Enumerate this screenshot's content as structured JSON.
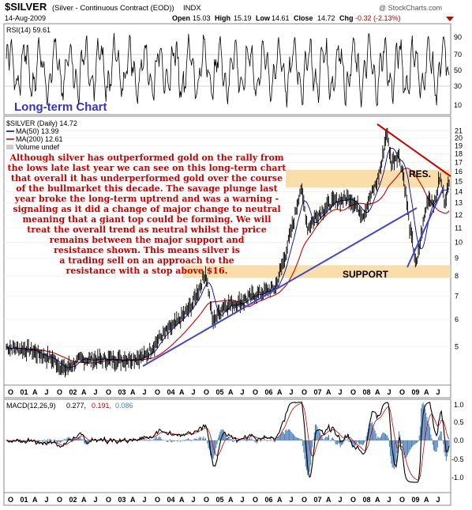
{
  "header": {
    "symbol": "$SILVER",
    "description": "(Silver - Continuous Contract (EOD))",
    "exchange": "INDX",
    "date": "14-Aug-2009",
    "open_label": "Open",
    "open": "15.03",
    "high_label": "High",
    "high": "15.19",
    "low_label": "Low",
    "low": "14.61",
    "close_label": "Close",
    "close": "14.72",
    "chg_label": "Chg",
    "chg": "-0.32 (-2.13%)",
    "watermark": "@ StockCharts.com"
  },
  "rsi_panel": {
    "label": "RSI(14) 59.61",
    "ticks": [
      "90",
      "70",
      "50",
      "30",
      "10"
    ]
  },
  "main_panel": {
    "overlay_title": "Long-term Chart",
    "legend": [
      {
        "text": "$SILVER (Daily) 14.72",
        "color": "#000000"
      },
      {
        "text": "MA(50) 13.99",
        "color": "#0000aa"
      },
      {
        "text": "MA(200) 12.61",
        "color": "#cc0000"
      },
      {
        "text": "Volume undef",
        "color": "#888888"
      }
    ],
    "commentary": [
      "Although silver has outperformed gold on the rally from",
      "the lows late last year we can see on this long-term chart",
      "that overall it has underperformed gold over the course",
      "of the bullmarket this decade. The savage plunge last",
      "year broke the long-term uptrend and was a warning -",
      "signaling as it did a change of major change to neutral",
      "meaning that a giant top could be forming. We will",
      "treat the overall trend as neutral whilst the price",
      "remains between the major support and",
      "resistance shown. This means silver is",
      "a trading sell on an approach to the",
      "resistance with a stop above $16."
    ],
    "resistance_label": "RES.",
    "support_label": "SUPPORT",
    "y_ticks": [
      "21",
      "20",
      "19",
      "18",
      "17",
      "16",
      "15",
      "14",
      "13",
      "12",
      "11",
      "10",
      "9",
      "8",
      "7",
      "6",
      "5"
    ]
  },
  "x_axis_labels": [
    "O",
    "01",
    "A",
    "J",
    "O",
    "02",
    "A",
    "J",
    "O",
    "03",
    "A",
    "J",
    "O",
    "04",
    "A",
    "J",
    "O",
    "05",
    "A",
    "J",
    "O",
    "06",
    "A",
    "J",
    "O",
    "07",
    "A",
    "J",
    "O",
    "08",
    "A",
    "J",
    "O",
    "09",
    "A",
    "J"
  ],
  "macd_panel": {
    "label_prefix": "MACD(12,26,9)",
    "macd_value": "0.277,",
    "signal_value": "0.191,",
    "hist_value": "0.086",
    "ticks": [
      "1.0",
      "0.5",
      "0.0",
      "-0.5",
      "-1.0"
    ]
  },
  "colors": {
    "price": "#000000",
    "ma50": "#0000aa",
    "ma200": "#cc0000",
    "band": "#f9d89b",
    "uptrend": "#4444cc",
    "downtrend": "#cc0000",
    "commentary": "#cc0000",
    "overlay_title": "#3333cc",
    "macd_hist": "#4a7fb8",
    "signal": "#cc0000",
    "chg_negative": "#cc0000"
  },
  "chart_data": {
    "type": "line",
    "scale": "log",
    "price_anchors": [
      {
        "t": 0.0,
        "v": 5.0
      },
      {
        "t": 0.5,
        "v": 4.9
      },
      {
        "t": 1.0,
        "v": 4.6
      },
      {
        "t": 1.25,
        "v": 4.3
      },
      {
        "t": 1.6,
        "v": 4.6
      },
      {
        "t": 2.0,
        "v": 4.6
      },
      {
        "t": 2.5,
        "v": 4.6
      },
      {
        "t": 3.0,
        "v": 4.7
      },
      {
        "t": 3.3,
        "v": 5.3
      },
      {
        "t": 3.7,
        "v": 5.9
      },
      {
        "t": 4.0,
        "v": 6.6
      },
      {
        "t": 4.15,
        "v": 7.3
      },
      {
        "t": 4.3,
        "v": 8.2
      },
      {
        "t": 4.45,
        "v": 5.9
      },
      {
        "t": 4.7,
        "v": 6.6
      },
      {
        "t": 5.0,
        "v": 6.7
      },
      {
        "t": 5.4,
        "v": 7.1
      },
      {
        "t": 5.8,
        "v": 7.4
      },
      {
        "t": 6.0,
        "v": 9.0
      },
      {
        "t": 6.2,
        "v": 11.5
      },
      {
        "t": 6.35,
        "v": 14.4
      },
      {
        "t": 6.5,
        "v": 11.0
      },
      {
        "t": 6.7,
        "v": 12.0
      },
      {
        "t": 7.0,
        "v": 13.0
      },
      {
        "t": 7.4,
        "v": 13.5
      },
      {
        "t": 7.7,
        "v": 12.0
      },
      {
        "t": 8.0,
        "v": 15.0
      },
      {
        "t": 8.1,
        "v": 17.0
      },
      {
        "t": 8.2,
        "v": 20.9
      },
      {
        "t": 8.3,
        "v": 17.0
      },
      {
        "t": 8.45,
        "v": 18.0
      },
      {
        "t": 8.55,
        "v": 16.0
      },
      {
        "t": 8.7,
        "v": 11.0
      },
      {
        "t": 8.85,
        "v": 8.5
      },
      {
        "t": 8.95,
        "v": 10.5
      },
      {
        "t": 9.1,
        "v": 13.5
      },
      {
        "t": 9.25,
        "v": 13.0
      },
      {
        "t": 9.35,
        "v": 15.5
      },
      {
        "t": 9.45,
        "v": 13.2
      },
      {
        "t": 9.55,
        "v": 14.7
      }
    ],
    "support_band": [
      7.9,
      8.6
    ],
    "resistance_band": [
      14.4,
      16.2
    ]
  }
}
